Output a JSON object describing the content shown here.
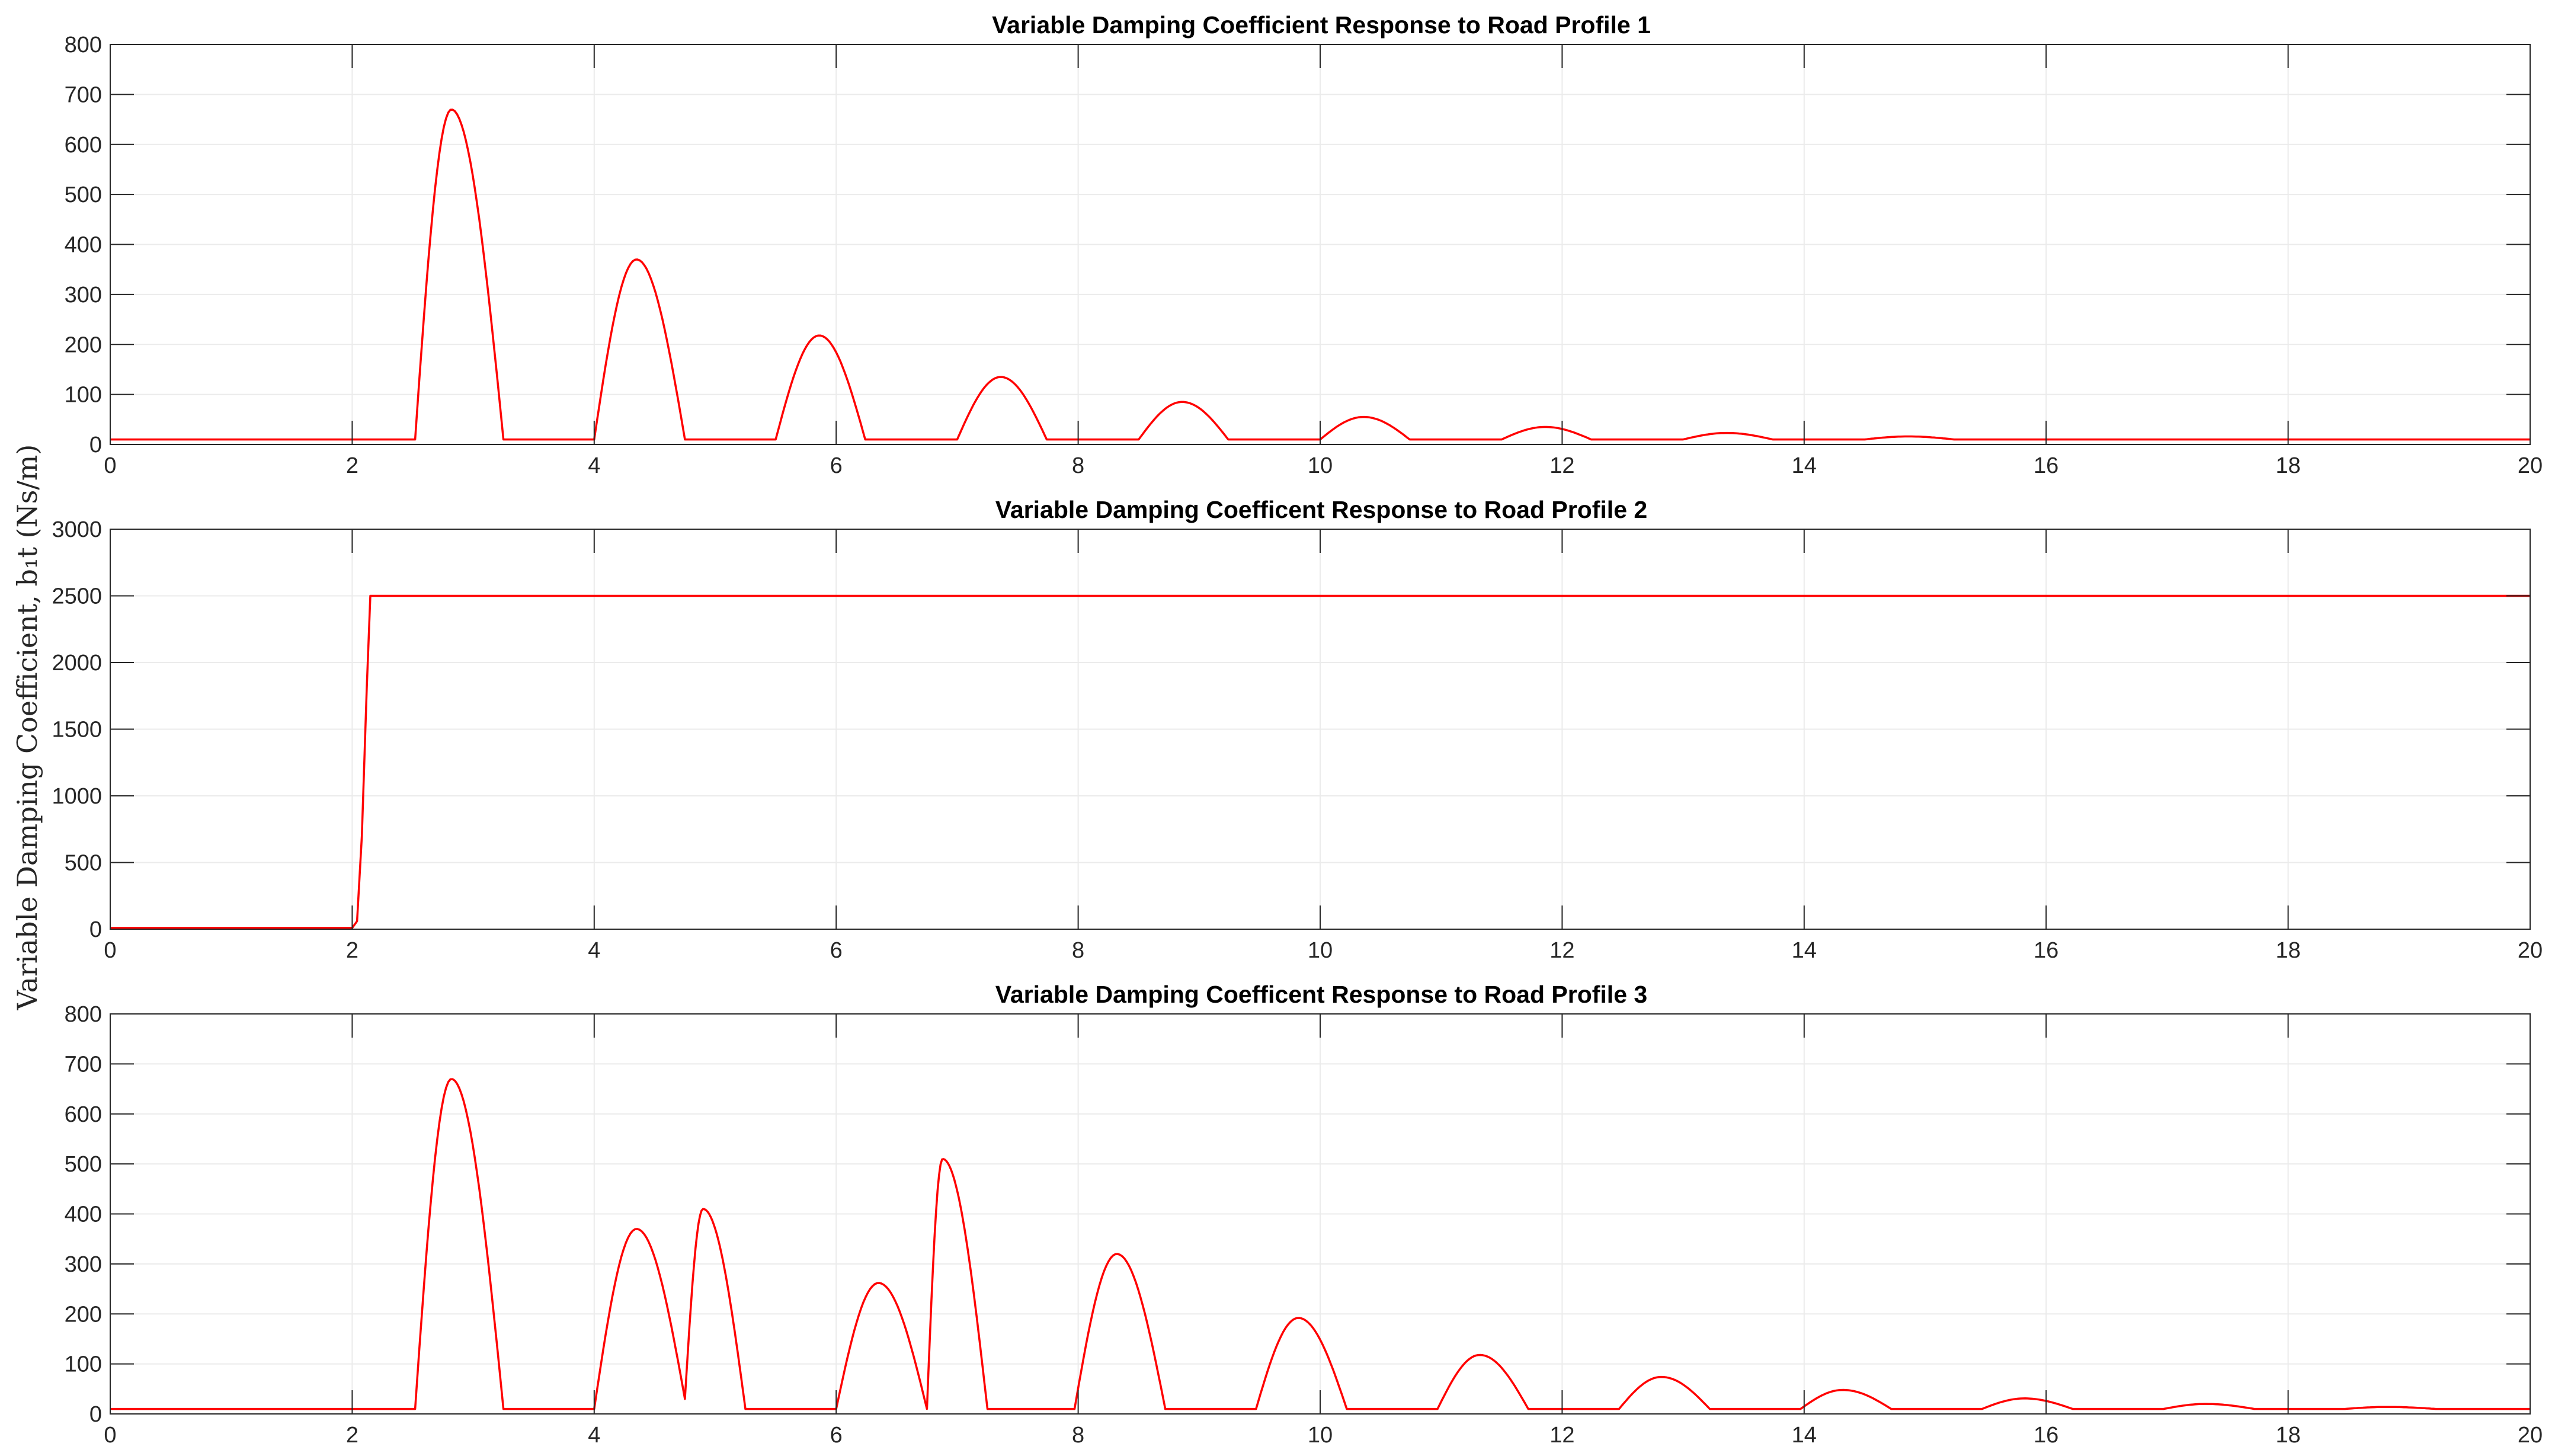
{
  "figure": {
    "ylabel": "Variable Damping Coefficient, b₁t (Ns/m)",
    "line_color": "#ff0000",
    "grid_color": "#ebebeb",
    "axis_color": "#262626"
  },
  "chart_data": [
    {
      "type": "line",
      "title": "Variable Damping Coefficient Response to Road Profile 1",
      "xlim": [
        0,
        20
      ],
      "ylim": [
        0,
        800
      ],
      "xticks": [
        0,
        2,
        4,
        6,
        8,
        10,
        12,
        14,
        16,
        18,
        20
      ],
      "yticks": [
        0,
        100,
        200,
        300,
        400,
        500,
        600,
        700,
        800
      ],
      "grid": true,
      "series": [
        {
          "baseline": 10,
          "pulses": [
            {
              "start": 2.52,
              "end": 3.25,
              "peak": 670,
              "peak_x": 2.82
            },
            {
              "start": 4.0,
              "end": 4.75,
              "peak": 370,
              "peak_x": 4.35
            },
            {
              "start": 5.5,
              "end": 6.24,
              "peak": 218,
              "peak_x": 5.86
            },
            {
              "start": 7.0,
              "end": 7.74,
              "peak": 135,
              "peak_x": 7.36
            },
            {
              "start": 8.5,
              "end": 9.24,
              "peak": 85,
              "peak_x": 8.86
            },
            {
              "start": 10.0,
              "end": 10.74,
              "peak": 55,
              "peak_x": 10.36
            },
            {
              "start": 11.5,
              "end": 12.24,
              "peak": 35,
              "peak_x": 11.86
            },
            {
              "start": 13.0,
              "end": 13.74,
              "peak": 23,
              "peak_x": 13.36
            },
            {
              "start": 14.5,
              "end": 15.24,
              "peak": 16,
              "peak_x": 14.86
            }
          ]
        }
      ]
    },
    {
      "type": "line",
      "title": "Variable Damping Coefficent Response to Road Profile 2",
      "xlim": [
        0,
        20
      ],
      "ylim": [
        0,
        3000
      ],
      "xticks": [
        0,
        2,
        4,
        6,
        8,
        10,
        12,
        14,
        16,
        18,
        20
      ],
      "yticks": [
        0,
        500,
        1000,
        1500,
        2000,
        2500,
        3000
      ],
      "grid": true,
      "series": [
        {
          "points": [
            [
              0,
              10
            ],
            [
              2.0,
              10
            ],
            [
              2.04,
              60
            ],
            [
              2.08,
              700
            ],
            [
              2.12,
              1800
            ],
            [
              2.15,
              2500
            ],
            [
              20,
              2500
            ]
          ]
        }
      ]
    },
    {
      "type": "line",
      "title": "Variable Damping Coefficent Response to Road Profile 3",
      "xlim": [
        0,
        20
      ],
      "ylim": [
        0,
        800
      ],
      "xticks": [
        0,
        2,
        4,
        6,
        8,
        10,
        12,
        14,
        16,
        18,
        20
      ],
      "yticks": [
        0,
        100,
        200,
        300,
        400,
        500,
        600,
        700,
        800
      ],
      "grid": true,
      "series": [
        {
          "baseline": 10,
          "pulses": [
            {
              "start": 2.52,
              "end": 3.25,
              "peak": 670,
              "peak_x": 2.82
            },
            {
              "start": 4.0,
              "end": 4.75,
              "peak": 370,
              "peak_x": 4.35,
              "end_value": 30
            },
            {
              "start": 4.75,
              "end": 5.25,
              "start_value": 30,
              "peak": 410,
              "peak_x": 4.9
            },
            {
              "start": 6.0,
              "end": 6.75,
              "peak": 262,
              "peak_x": 6.35,
              "end_value": 10
            },
            {
              "start": 6.75,
              "end": 7.25,
              "start_value": 10,
              "peak": 510,
              "peak_x": 6.88
            },
            {
              "start": 7.97,
              "end": 8.72,
              "peak": 320,
              "peak_x": 8.32
            },
            {
              "start": 9.47,
              "end": 10.22,
              "peak": 192,
              "peak_x": 9.82
            },
            {
              "start": 10.97,
              "end": 11.72,
              "peak": 118,
              "peak_x": 11.32
            },
            {
              "start": 12.47,
              "end": 13.22,
              "peak": 74,
              "peak_x": 12.82
            },
            {
              "start": 13.97,
              "end": 14.72,
              "peak": 48,
              "peak_x": 14.32
            },
            {
              "start": 15.47,
              "end": 16.22,
              "peak": 31,
              "peak_x": 15.82
            },
            {
              "start": 16.97,
              "end": 17.72,
              "peak": 20,
              "peak_x": 17.32
            },
            {
              "start": 18.47,
              "end": 19.22,
              "peak": 14,
              "peak_x": 18.82
            }
          ]
        }
      ]
    }
  ]
}
